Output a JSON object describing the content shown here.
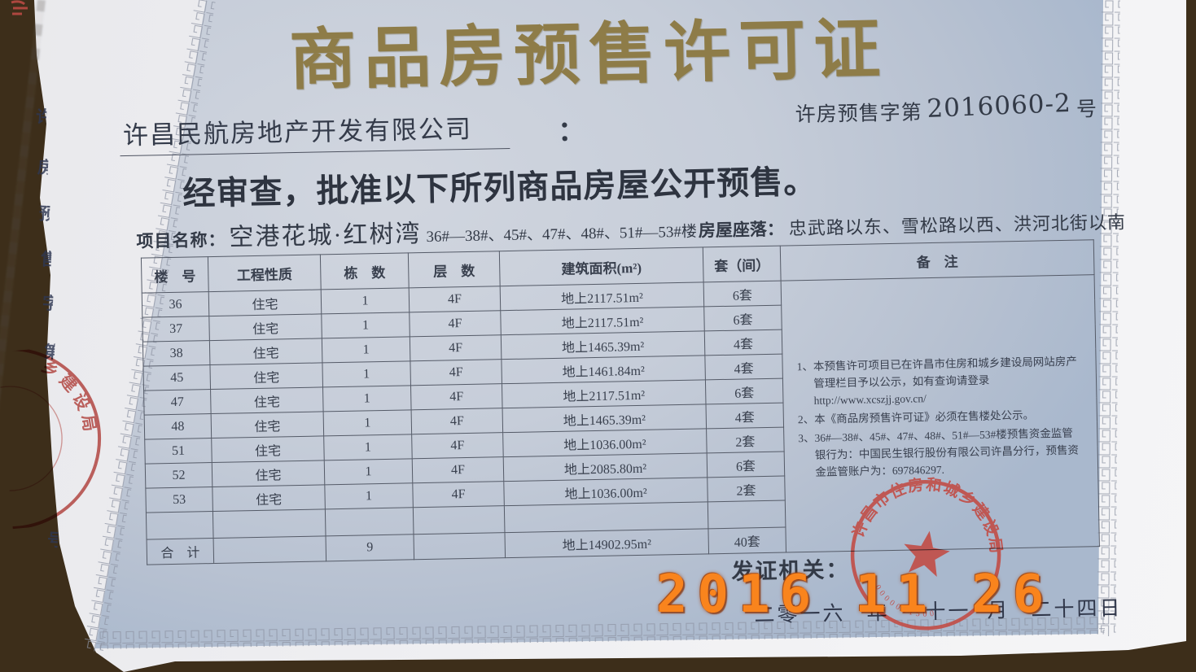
{
  "camera": {
    "year": "2016",
    "month": "11",
    "day": "26"
  },
  "stub": {
    "chars": [
      "许",
      "房",
      "预",
      "售",
      "字",
      "第",
      "号"
    ],
    "seal_text": "乡建设局"
  },
  "cert": {
    "title": "商品房预售许可证",
    "company": "许昌民航房地产开发有限公司",
    "colon": "：",
    "permit_prefix": "许房预售字第",
    "permit_number": "2016060-2",
    "permit_suffix": "号",
    "statement": "经审查，批准以下所列商品房屋公开预售。",
    "project_label": "项目名称：",
    "project_name": "空港花城·红树湾",
    "project_buildings": "36#—38#、45#、47#、48#、51#—53#楼",
    "location_label": "房屋座落：",
    "location": "忠武路以东、雪松路以西、洪河北街以南",
    "table": {
      "headers": [
        "楼　号",
        "工程性质",
        "栋　数",
        "层　数",
        "建筑面积(m²)",
        "套（间）",
        "备　注"
      ],
      "rows": [
        {
          "no": "36",
          "type": "住宅",
          "dong": "1",
          "floors": "4F",
          "area": "地上2117.51m²",
          "units": "6套"
        },
        {
          "no": "37",
          "type": "住宅",
          "dong": "1",
          "floors": "4F",
          "area": "地上2117.51m²",
          "units": "6套"
        },
        {
          "no": "38",
          "type": "住宅",
          "dong": "1",
          "floors": "4F",
          "area": "地上1465.39m²",
          "units": "4套"
        },
        {
          "no": "45",
          "type": "住宅",
          "dong": "1",
          "floors": "4F",
          "area": "地上1461.84m²",
          "units": "4套"
        },
        {
          "no": "47",
          "type": "住宅",
          "dong": "1",
          "floors": "4F",
          "area": "地上2117.51m²",
          "units": "6套"
        },
        {
          "no": "48",
          "type": "住宅",
          "dong": "1",
          "floors": "4F",
          "area": "地上1465.39m²",
          "units": "4套"
        },
        {
          "no": "51",
          "type": "住宅",
          "dong": "1",
          "floors": "4F",
          "area": "地上1036.00m²",
          "units": "2套"
        },
        {
          "no": "52",
          "type": "住宅",
          "dong": "1",
          "floors": "4F",
          "area": "地上2085.80m²",
          "units": "6套"
        },
        {
          "no": "53",
          "type": "住宅",
          "dong": "1",
          "floors": "4F",
          "area": "地上1036.00m²",
          "units": "2套"
        }
      ],
      "total": {
        "label": "合　计",
        "dong": "9",
        "area": "地上14902.95m²",
        "units": "40套"
      },
      "notes": [
        "1、本预售许可项目已在许昌市住房和城乡建设局网站房产管理栏目予以公示，如有查询请登录 http://www.xcszjj.gov.cn/",
        "2、本《商品房预售许可证》必须在售楼处公示。",
        "3、36#—38#、45#、47#、48#、51#—53#楼预售资金监管银行为：中国民生银行股份有限公司许昌分行，预售资金监管账户为：697846297."
      ]
    },
    "issuer_label": "发证机关：",
    "seal_org": "许昌市住房和城乡建设局",
    "seal_digits": "0000021500",
    "date": {
      "year": "二零一六",
      "year_unit": "年",
      "month": "十一",
      "month_unit": "月",
      "day": "二十四日"
    }
  },
  "colors": {
    "title_gold": "#8e7c48",
    "seal_red": "#c14c46",
    "timestamp_orange": "#f9841d",
    "ink": "#333a47"
  }
}
